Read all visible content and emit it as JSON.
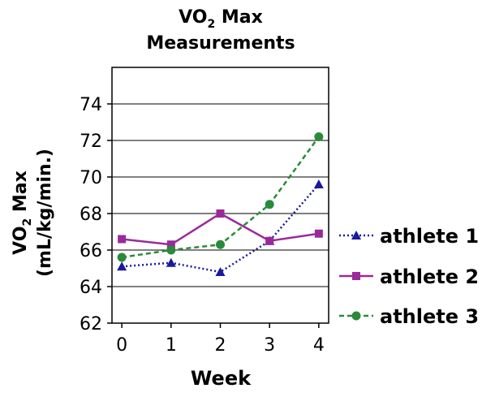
{
  "chart_data": {
    "type": "line",
    "title_line1_main": "VO",
    "title_line1_sub": "2",
    "title_line1_rest": " Max",
    "title_line2": "Measurements",
    "ylabel_line1_main": "VO",
    "ylabel_line1_sub": "2",
    "ylabel_line1_rest": " Max",
    "ylabel_line2": "(mL/kg/min.)",
    "xlabel": "Week",
    "x": [
      0,
      1,
      2,
      3,
      4
    ],
    "x_tick_labels": [
      "0",
      "1",
      "2",
      "3",
      "4"
    ],
    "y_tick_labels": [
      "62",
      "64",
      "66",
      "68",
      "70",
      "72",
      "74"
    ],
    "ylim": [
      62,
      76
    ],
    "xlim": [
      -0.2,
      4.2
    ],
    "grid": true,
    "legend_position": "right",
    "series": [
      {
        "name": "athlete 1",
        "values": [
          65.1,
          65.3,
          64.8,
          66.5,
          69.6
        ],
        "color": "#1a1a9a",
        "marker": "triangle",
        "dash": "dotted"
      },
      {
        "name": "athlete 2",
        "values": [
          66.6,
          66.3,
          68.0,
          66.5,
          66.9
        ],
        "color": "#9a2a9a",
        "marker": "square",
        "dash": "solid"
      },
      {
        "name": "athlete 3",
        "values": [
          65.6,
          66.0,
          66.3,
          68.5,
          72.2
        ],
        "color": "#2a8a3a",
        "marker": "circle",
        "dash": "dashed"
      }
    ]
  }
}
